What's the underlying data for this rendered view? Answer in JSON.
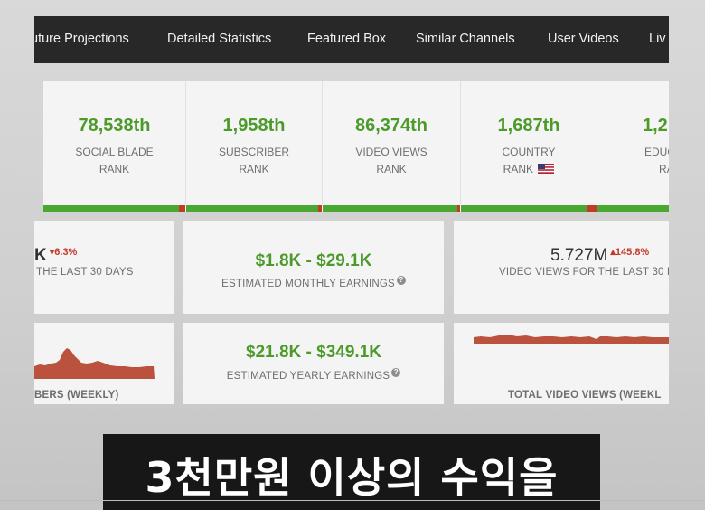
{
  "nav": {
    "items": [
      "uture Projections",
      "Detailed Statistics",
      "Featured Box",
      "Similar Channels",
      "User Videos",
      "Liv"
    ]
  },
  "ranks": [
    {
      "value": "78,538th",
      "line1": "SOCIAL BLADE",
      "line2": "RANK"
    },
    {
      "value": "1,958th",
      "line1": "SUBSCRIBER",
      "line2": "RANK"
    },
    {
      "value": "86,374th",
      "line1": "VIDEO VIEWS",
      "line2": "RANK"
    },
    {
      "value": "1,687th",
      "line1": "COUNTRY",
      "line2": "RANK"
    },
    {
      "value": "1,2",
      "line1": "EDUC",
      "line2": "RA"
    }
  ],
  "subs_summary": {
    "value": "K",
    "change": "6.3%",
    "label": "THE LAST 30 DAYS"
  },
  "monthly": {
    "range": "$1.8K  -  $29.1K",
    "label": "ESTIMATED MONTHLY EARNINGS"
  },
  "views_summary": {
    "value": "5.727M",
    "change": "145.8%",
    "label": "VIDEO VIEWS FOR THE LAST 30 DA"
  },
  "yearly": {
    "range": "$21.8K  -  $349.1K",
    "label": "ESTIMATED YEARLY EARNINGS"
  },
  "charts": {
    "subs_label": "BERS (WEEKLY)",
    "views_label": "TOTAL VIDEO VIEWS (WEEKL"
  },
  "subtitle": "3천만원 이상의 수익을",
  "colors": {
    "accent_green": "#4c9a2a",
    "bar_green": "#49a832",
    "down_red": "#c23b2a",
    "chart_red": "#b5432e"
  }
}
